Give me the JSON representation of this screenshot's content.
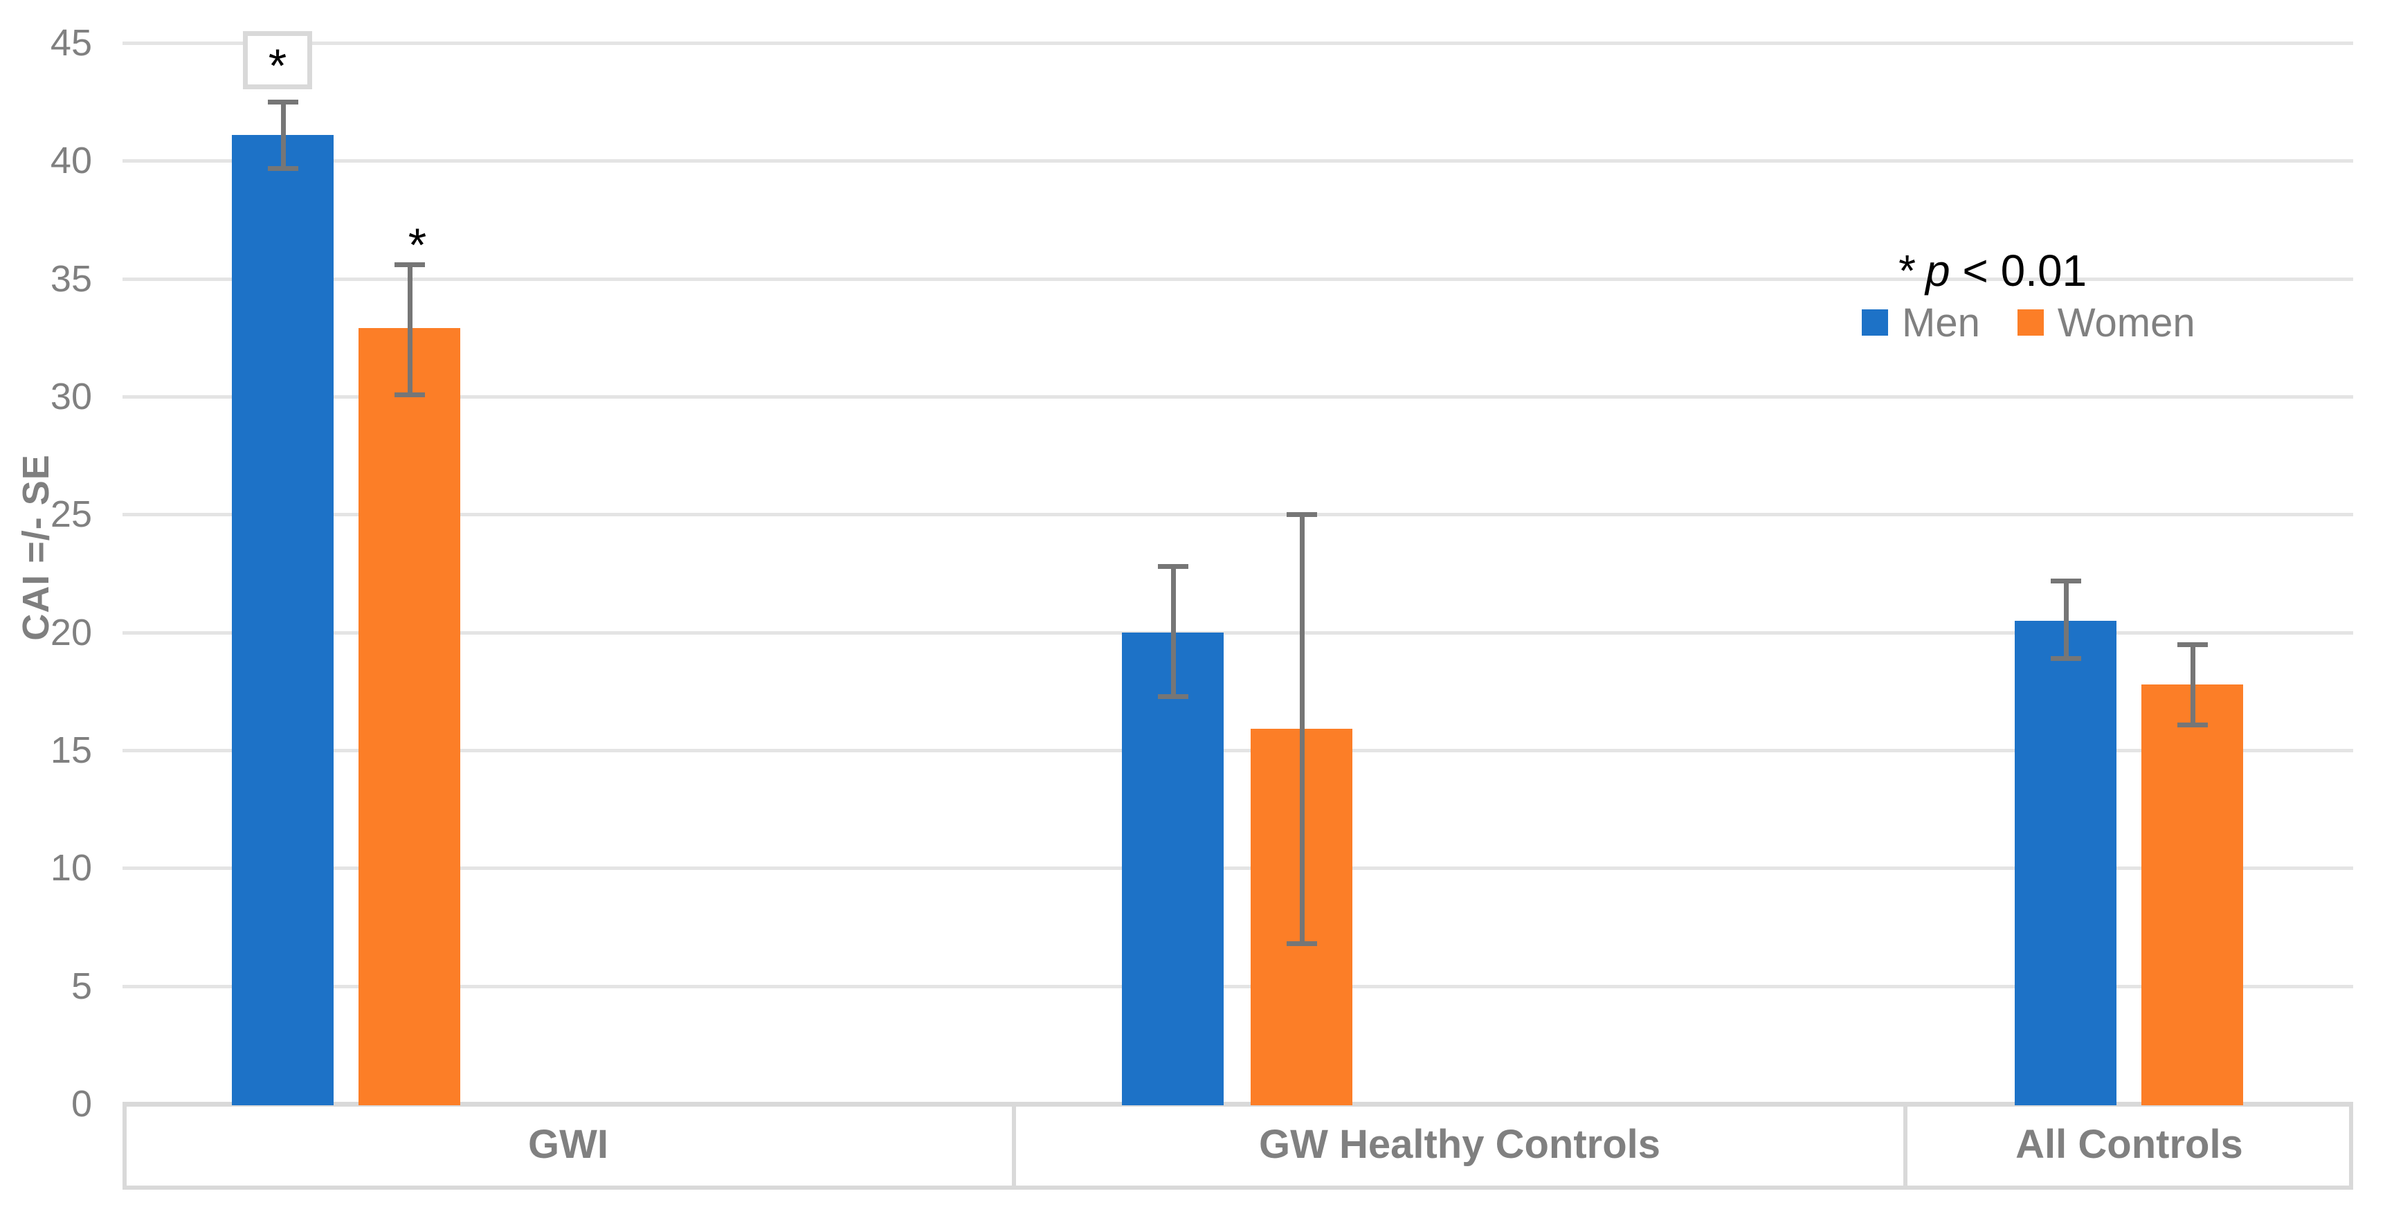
{
  "chart_data": {
    "type": "bar",
    "title": "",
    "xlabel": "",
    "ylabel": "CAI =/- SE",
    "ylim": [
      0,
      45
    ],
    "yticks": [
      0,
      5,
      10,
      15,
      20,
      25,
      30,
      35,
      40,
      45
    ],
    "grid": true,
    "legend_position": "top-right",
    "categories": [
      "GWI",
      "GW Healthy Controls",
      "All Controls"
    ],
    "series": [
      {
        "name": "Men",
        "color": "#1D72C7",
        "values": [
          41.1,
          20.0,
          20.5
        ],
        "err_low": [
          39.7,
          17.3,
          18.9
        ],
        "err_high": [
          42.5,
          22.8,
          22.2
        ]
      },
      {
        "name": "Women",
        "color": "#FC7E27",
        "values": [
          32.9,
          15.9,
          17.8
        ],
        "err_low": [
          30.1,
          6.8,
          16.1
        ],
        "err_high": [
          35.6,
          25.0,
          19.5
        ]
      }
    ],
    "significance_note": {
      "star": "*",
      "variable": "p",
      "comparison": " < 0.01"
    },
    "annotations": [
      {
        "text": "*",
        "boxed": true,
        "series": 0,
        "category": 0
      },
      {
        "text": "*",
        "boxed": false,
        "series": 1,
        "category": 0
      }
    ],
    "style": {
      "gridline_color": "#E4E4E4",
      "axis_color": "#D9D9D9",
      "band_border_color": "#D9D9D9",
      "error_bar_color": "#767676",
      "text_color": "#808080",
      "annotation_color": "#000000"
    }
  }
}
